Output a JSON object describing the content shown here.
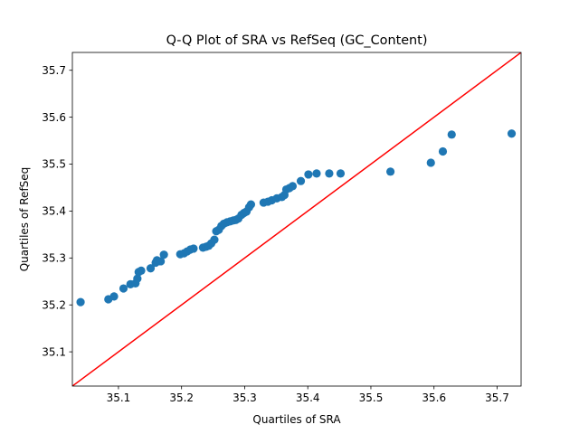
{
  "chart_data": {
    "type": "scatter",
    "title": "Q-Q Plot of SRA vs RefSeq (GC_Content)",
    "xlabel": "Quartiles of SRA",
    "ylabel": "Quartiles of RefSeq",
    "xlim": [
      35.027,
      35.738
    ],
    "ylim": [
      35.027,
      35.738
    ],
    "xticks": [
      "35.1",
      "35.2",
      "35.3",
      "35.4",
      "35.5",
      "35.6",
      "35.7"
    ],
    "yticks": [
      "35.1",
      "35.2",
      "35.3",
      "35.4",
      "35.5",
      "35.6",
      "35.7"
    ],
    "grid": false,
    "legend": "none",
    "marker_color": "#1f77b4",
    "reference_line": {
      "from": [
        35.027,
        35.027
      ],
      "to": [
        35.738,
        35.738
      ],
      "color": "#ff0000"
    },
    "points": [
      [
        35.04,
        35.206
      ],
      [
        35.084,
        35.212
      ],
      [
        35.093,
        35.218
      ],
      [
        35.108,
        35.235
      ],
      [
        35.119,
        35.244
      ],
      [
        35.127,
        35.246
      ],
      [
        35.13,
        35.256
      ],
      [
        35.132,
        35.27
      ],
      [
        35.136,
        35.273
      ],
      [
        35.151,
        35.278
      ],
      [
        35.159,
        35.29
      ],
      [
        35.161,
        35.295
      ],
      [
        35.167,
        35.293
      ],
      [
        35.172,
        35.307
      ],
      [
        35.198,
        35.308
      ],
      [
        35.204,
        35.31
      ],
      [
        35.209,
        35.314
      ],
      [
        35.214,
        35.318
      ],
      [
        35.219,
        35.32
      ],
      [
        35.234,
        35.322
      ],
      [
        35.239,
        35.324
      ],
      [
        35.243,
        35.326
      ],
      [
        35.247,
        35.331
      ],
      [
        35.252,
        35.339
      ],
      [
        35.255,
        35.357
      ],
      [
        35.259,
        35.36
      ],
      [
        35.263,
        35.368
      ],
      [
        35.267,
        35.373
      ],
      [
        35.272,
        35.376
      ],
      [
        35.277,
        35.378
      ],
      [
        35.282,
        35.38
      ],
      [
        35.286,
        35.381
      ],
      [
        35.29,
        35.384
      ],
      [
        35.295,
        35.392
      ],
      [
        35.299,
        35.396
      ],
      [
        35.303,
        35.399
      ],
      [
        35.307,
        35.408
      ],
      [
        35.31,
        35.414
      ],
      [
        35.33,
        35.418
      ],
      [
        35.337,
        35.42
      ],
      [
        35.343,
        35.423
      ],
      [
        35.351,
        35.427
      ],
      [
        35.359,
        35.43
      ],
      [
        35.363,
        35.434
      ],
      [
        35.366,
        35.446
      ],
      [
        35.371,
        35.449
      ],
      [
        35.376,
        35.453
      ],
      [
        35.389,
        35.464
      ],
      [
        35.401,
        35.478
      ],
      [
        35.414,
        35.48
      ],
      [
        35.434,
        35.48
      ],
      [
        35.452,
        35.48
      ],
      [
        35.531,
        35.484
      ],
      [
        35.595,
        35.503
      ],
      [
        35.614,
        35.527
      ],
      [
        35.628,
        35.563
      ],
      [
        35.723,
        35.565
      ]
    ]
  }
}
